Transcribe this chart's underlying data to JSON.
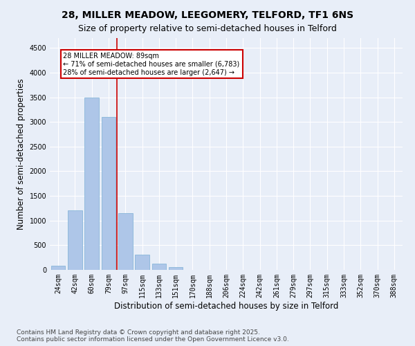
{
  "title_line1": "28, MILLER MEADOW, LEEGOMERY, TELFORD, TF1 6NS",
  "title_line2": "Size of property relative to semi-detached houses in Telford",
  "xlabel": "Distribution of semi-detached houses by size in Telford",
  "ylabel": "Number of semi-detached properties",
  "categories": [
    "24sqm",
    "42sqm",
    "60sqm",
    "79sqm",
    "97sqm",
    "115sqm",
    "133sqm",
    "151sqm",
    "170sqm",
    "188sqm",
    "206sqm",
    "224sqm",
    "242sqm",
    "261sqm",
    "279sqm",
    "297sqm",
    "315sqm",
    "333sqm",
    "352sqm",
    "370sqm",
    "388sqm"
  ],
  "values": [
    80,
    1200,
    3500,
    3100,
    1150,
    310,
    130,
    50,
    5,
    0,
    0,
    0,
    0,
    0,
    0,
    0,
    0,
    0,
    0,
    0,
    0
  ],
  "bar_color": "#aec6e8",
  "bar_edge_color": "#7aafd4",
  "annotation_text": "28 MILLER MEADOW: 89sqm\n← 71% of semi-detached houses are smaller (6,783)\n28% of semi-detached houses are larger (2,647) →",
  "vline_color": "#cc0000",
  "annotation_box_color": "#ffffff",
  "annotation_box_edge_color": "#cc0000",
  "ylim": [
    0,
    4700
  ],
  "yticks": [
    0,
    500,
    1000,
    1500,
    2000,
    2500,
    3000,
    3500,
    4000,
    4500
  ],
  "footnote": "Contains HM Land Registry data © Crown copyright and database right 2025.\nContains public sector information licensed under the Open Government Licence v3.0.",
  "background_color": "#e8eef8",
  "grid_color": "#ffffff",
  "title_fontsize": 10,
  "subtitle_fontsize": 9,
  "axis_label_fontsize": 8.5,
  "tick_fontsize": 7,
  "annotation_fontsize": 7,
  "footnote_fontsize": 6.5,
  "vline_x": 3.5
}
